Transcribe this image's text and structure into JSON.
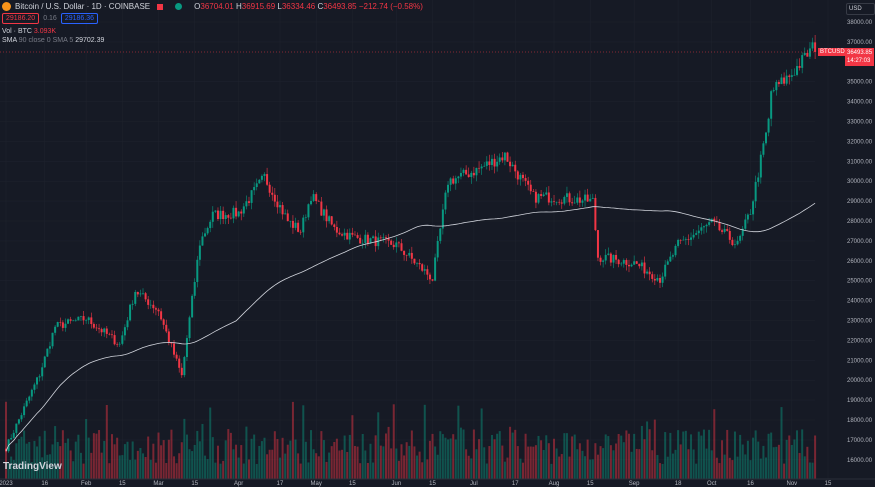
{
  "header": {
    "symbol": "Bitcoin / U.S. Dollar · 1D · COINBASE",
    "open_label": "O",
    "open": "36704.01",
    "high_label": "H",
    "high": "36915.69",
    "low_label": "L",
    "low": "36334.46",
    "close_label": "C",
    "close": "36493.85",
    "change": "−212.74 (−0.58%)",
    "sell": "29186.20",
    "spread": "0.16",
    "buy": "29186.36",
    "volume_label": "Vol · BTC",
    "volume": "3.093K",
    "sma_label": "SMA",
    "sma_params": "90 close 0 SMA 5",
    "sma_value": "29702.39",
    "currency": "USD"
  },
  "price_label": {
    "symbol": "BTCUSD",
    "price": "36493.85",
    "countdown": "14:27:03"
  },
  "branding": "TradingView",
  "colors": {
    "up": "#089981",
    "down": "#f23645",
    "sma": "#d1d4dc",
    "background": "#161a25"
  },
  "chart_data": {
    "type": "candlestick",
    "interval": "1D",
    "x_ticks": [
      "2023",
      "16",
      "Feb",
      "15",
      "Mar",
      "15",
      "Apr",
      "17",
      "May",
      "15",
      "Jun",
      "15",
      "Jul",
      "17",
      "Aug",
      "15",
      "Sep",
      "18",
      "Oct",
      "16",
      "Nov",
      "15"
    ],
    "y_ticks": [
      "38000.00",
      "37000.00",
      "35000.00",
      "34000.00",
      "33000.00",
      "32000.00",
      "31000.00",
      "30000.00",
      "29000.00",
      "28000.00",
      "27000.00",
      "26000.00",
      "25000.00",
      "24000.00",
      "23000.00",
      "22000.00",
      "21000.00",
      "20000.00",
      "19000.00",
      "18000.00",
      "17000.00",
      "16000.00"
    ],
    "ylim": [
      15800,
      38500
    ],
    "close_path": [
      [
        "2023-01-01",
        16600
      ],
      [
        "2023-01-14",
        20300
      ],
      [
        "2023-01-20",
        22700
      ],
      [
        "2023-02-01",
        23100
      ],
      [
        "2023-02-14",
        21800
      ],
      [
        "2023-02-20",
        24500
      ],
      [
        "2023-03-01",
        23500
      ],
      [
        "2023-03-10",
        20200
      ],
      [
        "2023-03-17",
        26900
      ],
      [
        "2023-03-22",
        28300
      ],
      [
        "2023-04-01",
        28400
      ],
      [
        "2023-04-11",
        30200
      ],
      [
        "2023-04-20",
        28000
      ],
      [
        "2023-04-25",
        27500
      ],
      [
        "2023-04-29",
        29300
      ],
      [
        "2023-05-08",
        27600
      ],
      [
        "2023-05-15",
        27200
      ],
      [
        "2023-06-01",
        26800
      ],
      [
        "2023-06-15",
        25100
      ],
      [
        "2023-06-21",
        30000
      ],
      [
        "2023-07-01",
        30500
      ],
      [
        "2023-07-13",
        31300
      ],
      [
        "2023-07-24",
        29200
      ],
      [
        "2023-08-01",
        29200
      ],
      [
        "2023-08-16",
        29000
      ],
      [
        "2023-08-18",
        26200
      ],
      [
        "2023-09-01",
        25900
      ],
      [
        "2023-09-11",
        25100
      ],
      [
        "2023-09-18",
        26800
      ],
      [
        "2023-10-01",
        27900
      ],
      [
        "2023-10-11",
        26800
      ],
      [
        "2023-10-16",
        28500
      ],
      [
        "2023-10-23",
        33000
      ],
      [
        "2023-10-24",
        34500
      ],
      [
        "2023-11-01",
        35400
      ],
      [
        "2023-11-09",
        36700
      ],
      [
        "2023-11-10",
        36493.85
      ]
    ],
    "sma_period": 90
  }
}
